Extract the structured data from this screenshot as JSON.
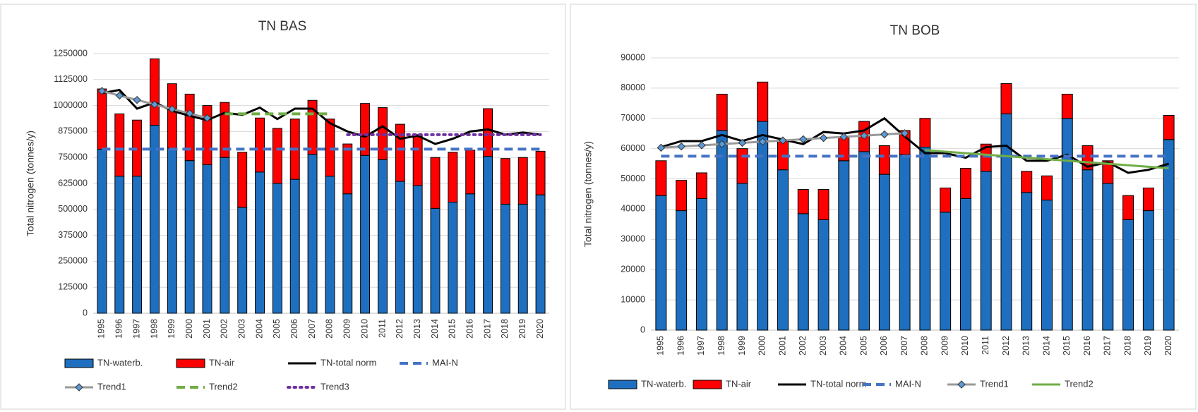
{
  "chart_data": [
    {
      "type": "bar",
      "title": "TN BAS",
      "y_label": "Total nitrogen (tonnes/y)",
      "categories": [
        "1995",
        "1996",
        "1997",
        "1998",
        "1999",
        "2000",
        "2001",
        "2002",
        "2003",
        "2004",
        "2005",
        "2006",
        "2007",
        "2008",
        "2009",
        "2010",
        "2011",
        "2012",
        "2013",
        "2014",
        "2015",
        "2016",
        "2017",
        "2018",
        "2019",
        "2020"
      ],
      "ylim": [
        0,
        1250000
      ],
      "yticks": [
        0,
        125000,
        250000,
        375000,
        500000,
        625000,
        750000,
        875000,
        1000000,
        1125000,
        1250000
      ],
      "grid": true,
      "legend": "bottom",
      "series": [
        {
          "name": "TN-waterb.",
          "kind": "bar",
          "color": "#1f6fc0",
          "values": [
            790000,
            660000,
            660000,
            905000,
            795000,
            735000,
            715000,
            750000,
            510000,
            680000,
            625000,
            645000,
            765000,
            660000,
            575000,
            760000,
            740000,
            635000,
            615000,
            505000,
            535000,
            575000,
            755000,
            525000,
            525000,
            570000
          ]
        },
        {
          "name": "TN-air",
          "kind": "bar",
          "color": "#ff0000",
          "values": [
            290000,
            300000,
            270000,
            320000,
            310000,
            320000,
            285000,
            265000,
            265000,
            260000,
            265000,
            290000,
            260000,
            275000,
            240000,
            250000,
            250000,
            275000,
            245000,
            245000,
            240000,
            210000,
            230000,
            220000,
            225000,
            210000
          ]
        },
        {
          "name": "TN-total norm",
          "kind": "line",
          "color": "#000000",
          "dash": "solid",
          "values": [
            1060000,
            1075000,
            985000,
            1015000,
            975000,
            950000,
            930000,
            965000,
            955000,
            990000,
            935000,
            985000,
            985000,
            915000,
            875000,
            850000,
            900000,
            840000,
            855000,
            815000,
            840000,
            875000,
            885000,
            860000,
            870000,
            860000
          ]
        },
        {
          "name": "MAI-N",
          "kind": "line",
          "color": "#4472c4",
          "dash": "dashed",
          "values": [
            790000,
            790000,
            790000,
            790000,
            790000,
            790000,
            790000,
            790000,
            790000,
            790000,
            790000,
            790000,
            790000,
            790000,
            790000,
            790000,
            790000,
            790000,
            790000,
            790000,
            790000,
            790000,
            790000,
            790000,
            790000,
            790000
          ]
        },
        {
          "name": "Trend1",
          "kind": "line",
          "color": "#999999",
          "dash": "solid",
          "marker": "diamond",
          "marker_color": "#5b9bd5",
          "values": [
            1070000,
            1048000,
            1027000,
            1005000,
            983000,
            962000,
            940000,
            null,
            null,
            null,
            null,
            null,
            null,
            null,
            null,
            null,
            null,
            null,
            null,
            null,
            null,
            null,
            null,
            null,
            null,
            null
          ]
        },
        {
          "name": "Trend2",
          "kind": "line",
          "color": "#70ad47",
          "dash": "dashed",
          "values": [
            null,
            null,
            null,
            null,
            null,
            null,
            null,
            960000,
            960000,
            960000,
            960000,
            960000,
            960000,
            960000,
            null,
            null,
            null,
            null,
            null,
            null,
            null,
            null,
            null,
            null,
            null,
            null
          ]
        },
        {
          "name": "Trend3",
          "kind": "line",
          "color": "#7030a0",
          "dash": "dotted",
          "values": [
            null,
            null,
            null,
            null,
            null,
            null,
            null,
            null,
            null,
            null,
            null,
            null,
            null,
            null,
            860000,
            860000,
            860000,
            860000,
            860000,
            860000,
            860000,
            860000,
            860000,
            860000,
            860000,
            860000
          ]
        }
      ]
    },
    {
      "type": "bar",
      "title": "TN BOB",
      "y_label": "Total nitrogen (tonnes/y)",
      "categories": [
        "1995",
        "1996",
        "1997",
        "1998",
        "1999",
        "2000",
        "2001",
        "2002",
        "2003",
        "2004",
        "2005",
        "2006",
        "2007",
        "2008",
        "2009",
        "2010",
        "2011",
        "2012",
        "2013",
        "2014",
        "2015",
        "2016",
        "2017",
        "2018",
        "2019",
        "2020"
      ],
      "ylim": [
        0,
        90000
      ],
      "yticks": [
        0,
        10000,
        20000,
        30000,
        40000,
        50000,
        60000,
        70000,
        80000,
        90000
      ],
      "grid": true,
      "legend": "bottom",
      "series": [
        {
          "name": "TN-waterb.",
          "kind": "bar",
          "color": "#1f6fc0",
          "values": [
            44500,
            39500,
            43500,
            66000,
            48500,
            69000,
            53000,
            38500,
            36500,
            56000,
            59000,
            51500,
            58000,
            60500,
            39000,
            43500,
            52500,
            71500,
            45500,
            43000,
            70000,
            53000,
            48500,
            36500,
            39500,
            63000
          ]
        },
        {
          "name": "TN-air",
          "kind": "bar",
          "color": "#ff0000",
          "values": [
            11500,
            10000,
            8500,
            12000,
            11500,
            13000,
            9500,
            8000,
            10000,
            8000,
            10000,
            9500,
            8000,
            9500,
            8000,
            10000,
            9000,
            10000,
            7000,
            8000,
            8000,
            8000,
            7500,
            8000,
            7500,
            8000
          ]
        },
        {
          "name": "TN-total norm",
          "kind": "line",
          "color": "#000000",
          "dash": "solid",
          "values": [
            60500,
            62500,
            62500,
            64500,
            62500,
            64500,
            63000,
            61500,
            65500,
            65000,
            66000,
            70000,
            64000,
            58500,
            58500,
            57000,
            60500,
            61000,
            56000,
            56000,
            58000,
            54000,
            55500,
            52000,
            53000,
            55000
          ]
        },
        {
          "name": "MAI-N",
          "kind": "line",
          "color": "#4472c4",
          "dash": "dashed",
          "values": [
            57500,
            57500,
            57500,
            57500,
            57500,
            57500,
            57500,
            57500,
            57500,
            57500,
            57500,
            57500,
            57500,
            57500,
            57500,
            57500,
            57500,
            57500,
            57500,
            57500,
            57500,
            57500,
            57500,
            57500,
            57500,
            57500
          ]
        },
        {
          "name": "Trend1",
          "kind": "line",
          "color": "#999999",
          "dash": "solid",
          "marker": "diamond",
          "marker_color": "#5b9bd5",
          "values": [
            60300,
            60700,
            61100,
            61500,
            61900,
            62300,
            62700,
            63100,
            63500,
            63900,
            64300,
            64700,
            65100,
            null,
            null,
            null,
            null,
            null,
            null,
            null,
            null,
            null,
            null,
            null,
            null,
            null
          ]
        },
        {
          "name": "Trend2",
          "kind": "line",
          "color": "#70ad47",
          "dash": "solid",
          "values": [
            null,
            null,
            null,
            null,
            null,
            null,
            null,
            null,
            null,
            null,
            null,
            null,
            null,
            59500,
            59000,
            58500,
            58000,
            57500,
            57000,
            56500,
            56000,
            55500,
            55000,
            54500,
            54000,
            53500
          ]
        }
      ]
    }
  ]
}
